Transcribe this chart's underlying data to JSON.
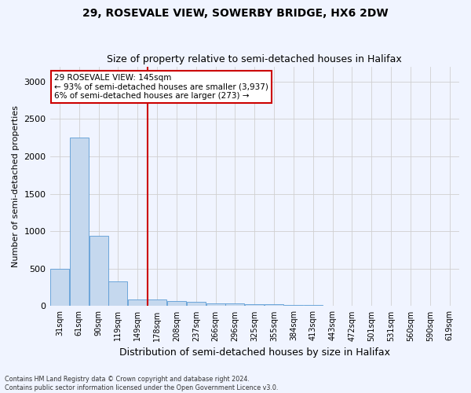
{
  "title1": "29, ROSEVALE VIEW, SOWERBY BRIDGE, HX6 2DW",
  "title2": "Size of property relative to semi-detached houses in Halifax",
  "xlabel": "Distribution of semi-detached houses by size in Halifax",
  "ylabel": "Number of semi-detached properties",
  "categories": [
    "31sqm",
    "61sqm",
    "90sqm",
    "119sqm",
    "149sqm",
    "178sqm",
    "208sqm",
    "237sqm",
    "266sqm",
    "296sqm",
    "325sqm",
    "355sqm",
    "384sqm",
    "413sqm",
    "443sqm",
    "472sqm",
    "501sqm",
    "531sqm",
    "560sqm",
    "590sqm",
    "619sqm"
  ],
  "values": [
    500,
    2250,
    940,
    330,
    90,
    90,
    65,
    55,
    40,
    35,
    30,
    30,
    15,
    10,
    5,
    5,
    3,
    2,
    2,
    2,
    2
  ],
  "bar_color": "#c5d8ee",
  "bar_edge_color": "#5b9bd5",
  "grid_color": "#d0d0d0",
  "vline_x": 4.5,
  "vline_color": "#cc0000",
  "annotation_line1": "29 ROSEVALE VIEW: 145sqm",
  "annotation_line2": "← 93% of semi-detached houses are smaller (3,937)",
  "annotation_line3": "6% of semi-detached houses are larger (273) →",
  "annotation_box_color": "#ffffff",
  "annotation_box_edge_color": "#cc0000",
  "ylim": [
    0,
    3200
  ],
  "yticks": [
    0,
    500,
    1000,
    1500,
    2000,
    2500,
    3000
  ],
  "footnote": "Contains HM Land Registry data © Crown copyright and database right 2024.\nContains public sector information licensed under the Open Government Licence v3.0.",
  "background_color": "#f0f4ff",
  "title1_fontsize": 10,
  "title2_fontsize": 9,
  "xlabel_fontsize": 9,
  "ylabel_fontsize": 8
}
